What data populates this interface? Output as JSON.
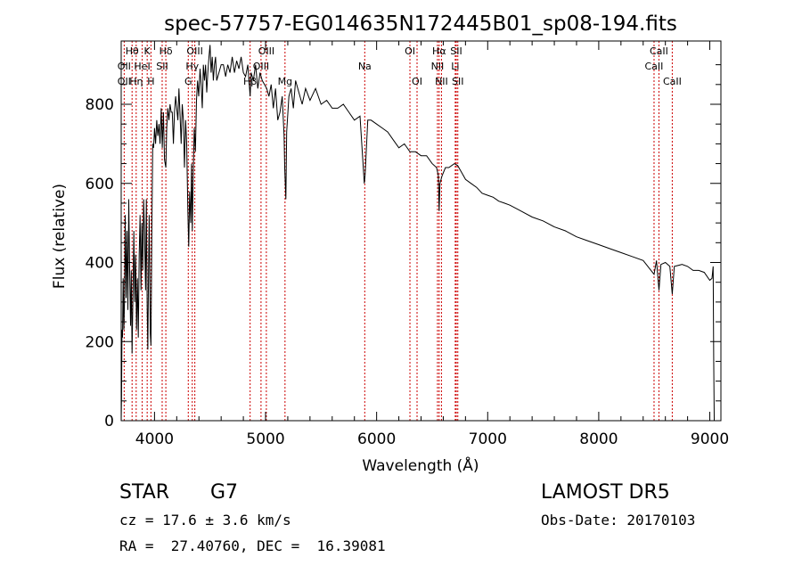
{
  "chart_data": {
    "type": "line",
    "title": "spec-57757-EG014635N172445B01_sp08-194.fits",
    "xlabel": "Wavelength (Å)",
    "ylabel": "Flux (relative)",
    "xlim": [
      3700,
      9100
    ],
    "ylim": [
      0,
      960
    ],
    "xticks": [
      4000,
      5000,
      6000,
      7000,
      8000,
      9000
    ],
    "yticks": [
      0,
      200,
      400,
      600,
      800
    ],
    "grid": false,
    "series": [
      {
        "values": [
          [
            3700,
            0
          ],
          [
            3703,
            60
          ],
          [
            3707,
            230
          ],
          [
            3712,
            210
          ],
          [
            3718,
            360
          ],
          [
            3724,
            230
          ],
          [
            3730,
            300
          ],
          [
            3736,
            520
          ],
          [
            3744,
            310
          ],
          [
            3752,
            480
          ],
          [
            3760,
            280
          ],
          [
            3768,
            560
          ],
          [
            3776,
            380
          ],
          [
            3784,
            240
          ],
          [
            3791,
            380
          ],
          [
            3798,
            170
          ],
          [
            3806,
            320
          ],
          [
            3814,
            480
          ],
          [
            3822,
            300
          ],
          [
            3830,
            420
          ],
          [
            3838,
            230
          ],
          [
            3846,
            360
          ],
          [
            3854,
            210
          ],
          [
            3862,
            420
          ],
          [
            3870,
            520
          ],
          [
            3878,
            330
          ],
          [
            3886,
            500
          ],
          [
            3894,
            380
          ],
          [
            3902,
            560
          ],
          [
            3910,
            470
          ],
          [
            3920,
            330
          ],
          [
            3926,
            560
          ],
          [
            3934,
            280
          ],
          [
            3940,
            180
          ],
          [
            3946,
            380
          ],
          [
            3952,
            520
          ],
          [
            3958,
            330
          ],
          [
            3962,
            220
          ],
          [
            3968,
            190
          ],
          [
            3976,
            480
          ],
          [
            3984,
            700
          ],
          [
            3992,
            690
          ],
          [
            4000,
            740
          ],
          [
            4010,
            700
          ],
          [
            4020,
            760
          ],
          [
            4030,
            720
          ],
          [
            4040,
            750
          ],
          [
            4050,
            700
          ],
          [
            4060,
            790
          ],
          [
            4070,
            690
          ],
          [
            4080,
            780
          ],
          [
            4090,
            660
          ],
          [
            4102,
            640
          ],
          [
            4110,
            740
          ],
          [
            4120,
            790
          ],
          [
            4130,
            760
          ],
          [
            4140,
            800
          ],
          [
            4150,
            780
          ],
          [
            4160,
            780
          ],
          [
            4170,
            700
          ],
          [
            4180,
            780
          ],
          [
            4190,
            820
          ],
          [
            4200,
            790
          ],
          [
            4210,
            760
          ],
          [
            4220,
            840
          ],
          [
            4230,
            770
          ],
          [
            4240,
            700
          ],
          [
            4250,
            800
          ],
          [
            4260,
            760
          ],
          [
            4270,
            640
          ],
          [
            4280,
            760
          ],
          [
            4290,
            700
          ],
          [
            4300,
            530
          ],
          [
            4308,
            440
          ],
          [
            4316,
            580
          ],
          [
            4326,
            500
          ],
          [
            4334,
            650
          ],
          [
            4340,
            480
          ],
          [
            4348,
            620
          ],
          [
            4358,
            740
          ],
          [
            4368,
            680
          ],
          [
            4378,
            810
          ],
          [
            4388,
            860
          ],
          [
            4398,
            820
          ],
          [
            4410,
            890
          ],
          [
            4420,
            850
          ],
          [
            4430,
            790
          ],
          [
            4440,
            900
          ],
          [
            4450,
            860
          ],
          [
            4460,
            900
          ],
          [
            4470,
            830
          ],
          [
            4480,
            880
          ],
          [
            4490,
            920
          ],
          [
            4500,
            950
          ],
          [
            4510,
            880
          ],
          [
            4520,
            920
          ],
          [
            4530,
            860
          ],
          [
            4540,
            900
          ],
          [
            4550,
            920
          ],
          [
            4560,
            860
          ],
          [
            4580,
            880
          ],
          [
            4600,
            900
          ],
          [
            4620,
            900
          ],
          [
            4640,
            870
          ],
          [
            4660,
            900
          ],
          [
            4680,
            880
          ],
          [
            4700,
            920
          ],
          [
            4720,
            880
          ],
          [
            4740,
            910
          ],
          [
            4760,
            890
          ],
          [
            4780,
            920
          ],
          [
            4800,
            880
          ],
          [
            4820,
            870
          ],
          [
            4840,
            900
          ],
          [
            4861,
            820
          ],
          [
            4870,
            880
          ],
          [
            4890,
            860
          ],
          [
            4910,
            900
          ],
          [
            4930,
            840
          ],
          [
            4950,
            880
          ],
          [
            4970,
            860
          ],
          [
            4990,
            850
          ],
          [
            5010,
            840
          ],
          [
            5030,
            820
          ],
          [
            5050,
            850
          ],
          [
            5070,
            790
          ],
          [
            5090,
            840
          ],
          [
            5110,
            760
          ],
          [
            5130,
            780
          ],
          [
            5150,
            820
          ],
          [
            5167,
            720
          ],
          [
            5172,
            640
          ],
          [
            5183,
            560
          ],
          [
            5190,
            730
          ],
          [
            5210,
            820
          ],
          [
            5230,
            840
          ],
          [
            5250,
            790
          ],
          [
            5270,
            860
          ],
          [
            5300,
            830
          ],
          [
            5330,
            800
          ],
          [
            5360,
            840
          ],
          [
            5400,
            810
          ],
          [
            5450,
            840
          ],
          [
            5500,
            800
          ],
          [
            5550,
            810
          ],
          [
            5600,
            790
          ],
          [
            5650,
            790
          ],
          [
            5700,
            800
          ],
          [
            5750,
            780
          ],
          [
            5800,
            760
          ],
          [
            5850,
            770
          ],
          [
            5889,
            600
          ],
          [
            5896,
            620
          ],
          [
            5920,
            760
          ],
          [
            5950,
            760
          ],
          [
            6000,
            750
          ],
          [
            6050,
            740
          ],
          [
            6100,
            730
          ],
          [
            6150,
            710
          ],
          [
            6200,
            690
          ],
          [
            6250,
            700
          ],
          [
            6300,
            680
          ],
          [
            6350,
            680
          ],
          [
            6400,
            670
          ],
          [
            6450,
            670
          ],
          [
            6500,
            650
          ],
          [
            6540,
            640
          ],
          [
            6556,
            620
          ],
          [
            6563,
            530
          ],
          [
            6570,
            600
          ],
          [
            6590,
            620
          ],
          [
            6620,
            640
          ],
          [
            6650,
            640
          ],
          [
            6700,
            650
          ],
          [
            6730,
            645
          ],
          [
            6760,
            630
          ],
          [
            6800,
            610
          ],
          [
            6850,
            600
          ],
          [
            6900,
            590
          ],
          [
            6950,
            575
          ],
          [
            7000,
            570
          ],
          [
            7050,
            565
          ],
          [
            7100,
            555
          ],
          [
            7150,
            550
          ],
          [
            7200,
            545
          ],
          [
            7300,
            530
          ],
          [
            7400,
            515
          ],
          [
            7500,
            505
          ],
          [
            7600,
            490
          ],
          [
            7700,
            480
          ],
          [
            7800,
            465
          ],
          [
            7900,
            455
          ],
          [
            8000,
            445
          ],
          [
            8100,
            435
          ],
          [
            8200,
            425
          ],
          [
            8300,
            415
          ],
          [
            8400,
            405
          ],
          [
            8498,
            370
          ],
          [
            8520,
            405
          ],
          [
            8542,
            330
          ],
          [
            8560,
            395
          ],
          [
            8600,
            400
          ],
          [
            8640,
            390
          ],
          [
            8662,
            320
          ],
          [
            8680,
            390
          ],
          [
            8750,
            395
          ],
          [
            8800,
            390
          ],
          [
            8850,
            380
          ],
          [
            8900,
            380
          ],
          [
            8950,
            375
          ],
          [
            9000,
            355
          ],
          [
            9020,
            360
          ],
          [
            9030,
            390
          ],
          [
            9035,
            160
          ],
          [
            9040,
            0
          ]
        ]
      }
    ],
    "lines": [
      {
        "label": "Hθ",
        "x": 3798,
        "row": 0
      },
      {
        "label": "OII",
        "x": 3727,
        "row": 1
      },
      {
        "label": "OII",
        "x": 3727,
        "row": 2
      },
      {
        "label": "K",
        "x": 3934,
        "row": 0
      },
      {
        "label": "HeI",
        "x": 3889,
        "row": 1
      },
      {
        "label": "Hη",
        "x": 3835,
        "row": 2
      },
      {
        "label": "Hδ",
        "x": 4102,
        "row": 0
      },
      {
        "label": "SII",
        "x": 4069,
        "row": 1
      },
      {
        "label": "H",
        "x": 3968,
        "row": 2
      },
      {
        "label": "OIII",
        "x": 4363,
        "row": 0
      },
      {
        "label": "Hγ",
        "x": 4340,
        "row": 1
      },
      {
        "label": "G",
        "x": 4304,
        "row": 2
      },
      {
        "label": "OIII",
        "x": 5007,
        "row": 0
      },
      {
        "label": "OIII",
        "x": 4959,
        "row": 1
      },
      {
        "label": "Hβ",
        "x": 4861,
        "row": 2
      },
      {
        "label": "Mg",
        "x": 5175,
        "row": 2
      },
      {
        "label": "Na",
        "x": 5893,
        "row": 1
      },
      {
        "label": "OI",
        "x": 6300,
        "row": 0
      },
      {
        "label": "OI",
        "x": 6364,
        "row": 2
      },
      {
        "label": "Hα",
        "x": 6563,
        "row": 0
      },
      {
        "label": "NII",
        "x": 6548,
        "row": 1
      },
      {
        "label": "NII",
        "x": 6584,
        "row": 2
      },
      {
        "label": "SII",
        "x": 6717,
        "row": 0
      },
      {
        "label": "Li",
        "x": 6708,
        "row": 1
      },
      {
        "label": "SII",
        "x": 6731,
        "row": 2
      },
      {
        "label": "CaII",
        "x": 8542,
        "row": 0
      },
      {
        "label": "CaII",
        "x": 8498,
        "row": 1
      },
      {
        "label": "CaII",
        "x": 8662,
        "row": 2
      }
    ]
  },
  "info": {
    "object_class": "STAR",
    "subclass": "G7",
    "survey": "LAMOST DR5",
    "redshift": "cz = 17.6 ± 3.6 km/s",
    "obs_date": "Obs-Date: 20170103",
    "coords": "RA =  27.40760, DEC =  16.39081"
  }
}
